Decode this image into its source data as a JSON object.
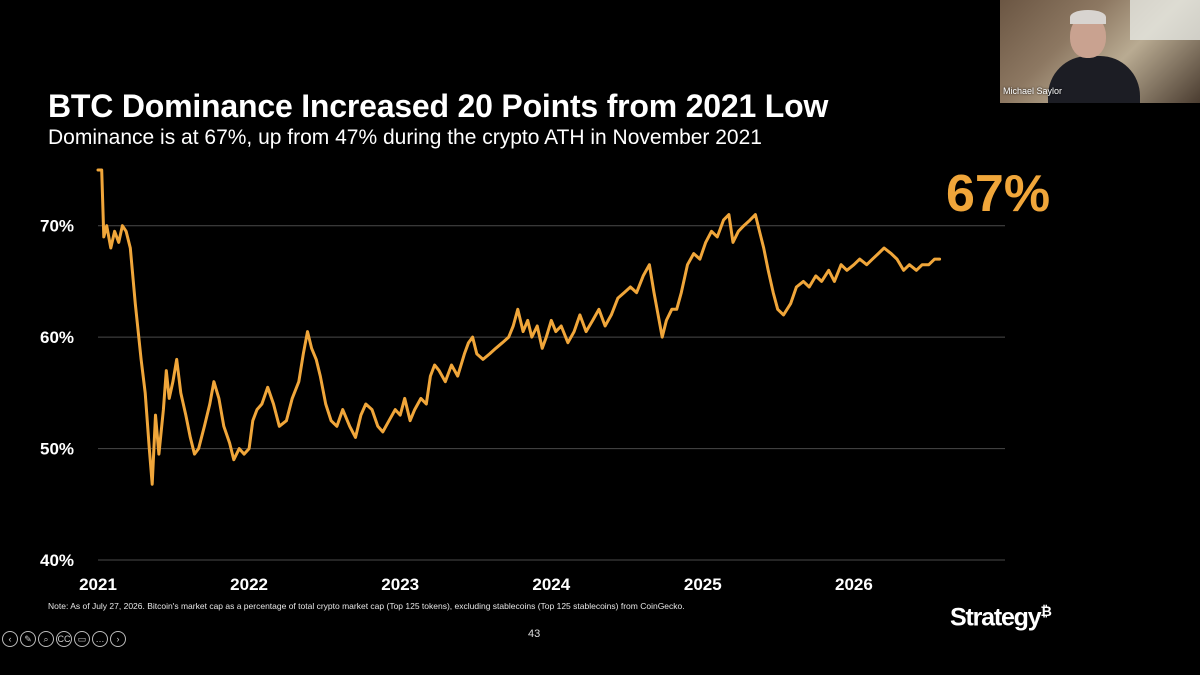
{
  "title": "BTC Dominance Increased 20 Points from 2021 Low",
  "subtitle": "Dominance is at 67%, up from 47% during the crypto ATH in November 2021",
  "highlight": "67%",
  "note": "Note: As of July 27, 2026. Bitcoin's market cap as a percentage of total crypto market cap (Top 125 tokens), excluding stablecoins (Top 125 stablecoins) from CoinGecko.",
  "page_number": "43",
  "logo": {
    "text": "Strategy",
    "mark": "₿"
  },
  "video": {
    "name": "Michael Saylor"
  },
  "controls": [
    {
      "name": "previous-icon",
      "glyph": "‹"
    },
    {
      "name": "pen-icon",
      "glyph": "✎"
    },
    {
      "name": "zoom-icon",
      "glyph": "⌕"
    },
    {
      "name": "captions-icon",
      "glyph": "CC"
    },
    {
      "name": "camera-icon",
      "glyph": "▭"
    },
    {
      "name": "more-icon",
      "glyph": "…"
    },
    {
      "name": "next-icon",
      "glyph": "›"
    }
  ],
  "colors": {
    "line": "#f0a63a",
    "grid": "#4a4a4a",
    "background": "#000000"
  },
  "chart_data": {
    "type": "line",
    "title": "BTC Dominance Increased 20 Points from 2021 Low",
    "xlabel": "",
    "ylabel": "",
    "x_ticks": [
      "2021",
      "2022",
      "2023",
      "2024",
      "2025",
      "2026"
    ],
    "y_ticks": [
      "40%",
      "50%",
      "60%",
      "70%"
    ],
    "ylim": [
      40,
      75
    ],
    "xlim": [
      "2021-01-01",
      "2026-07-27"
    ],
    "grid": true,
    "series": [
      {
        "values": [
          [
            "2021-01-01",
            75
          ],
          [
            "2021-01-10",
            75
          ],
          [
            "2021-01-15",
            69
          ],
          [
            "2021-01-22",
            70
          ],
          [
            "2021-02-01",
            68
          ],
          [
            "2021-02-10",
            69.5
          ],
          [
            "2021-02-20",
            68.5
          ],
          [
            "2021-03-01",
            70
          ],
          [
            "2021-03-10",
            69.5
          ],
          [
            "2021-03-20",
            68
          ],
          [
            "2021-04-01",
            63
          ],
          [
            "2021-04-15",
            58
          ],
          [
            "2021-04-25",
            55
          ],
          [
            "2021-05-05",
            50
          ],
          [
            "2021-05-12",
            46.8
          ],
          [
            "2021-05-20",
            53
          ],
          [
            "2021-05-28",
            49.5
          ],
          [
            "2021-06-08",
            53.5
          ],
          [
            "2021-06-15",
            57
          ],
          [
            "2021-06-22",
            54.5
          ],
          [
            "2021-07-01",
            56
          ],
          [
            "2021-07-10",
            58
          ],
          [
            "2021-07-20",
            55
          ],
          [
            "2021-08-01",
            53
          ],
          [
            "2021-08-12",
            51
          ],
          [
            "2021-08-22",
            49.5
          ],
          [
            "2021-09-01",
            50
          ],
          [
            "2021-09-15",
            52
          ],
          [
            "2021-09-28",
            54
          ],
          [
            "2021-10-08",
            56
          ],
          [
            "2021-10-20",
            54.5
          ],
          [
            "2021-11-01",
            52
          ],
          [
            "2021-11-15",
            50.5
          ],
          [
            "2021-11-25",
            49
          ],
          [
            "2021-12-08",
            50
          ],
          [
            "2021-12-20",
            49.5
          ],
          [
            "2022-01-01",
            50
          ],
          [
            "2022-01-10",
            52.5
          ],
          [
            "2022-01-20",
            53.5
          ],
          [
            "2022-02-01",
            54
          ],
          [
            "2022-02-15",
            55.5
          ],
          [
            "2022-03-01",
            54
          ],
          [
            "2022-03-15",
            52
          ],
          [
            "2022-04-01",
            52.5
          ],
          [
            "2022-04-15",
            54.5
          ],
          [
            "2022-05-01",
            56
          ],
          [
            "2022-05-12",
            58.5
          ],
          [
            "2022-05-22",
            60.5
          ],
          [
            "2022-06-01",
            59
          ],
          [
            "2022-06-12",
            58
          ],
          [
            "2022-06-22",
            56.5
          ],
          [
            "2022-07-05",
            54
          ],
          [
            "2022-07-18",
            52.5
          ],
          [
            "2022-08-01",
            52
          ],
          [
            "2022-08-15",
            53.5
          ],
          [
            "2022-09-01",
            52
          ],
          [
            "2022-09-15",
            51
          ],
          [
            "2022-09-28",
            53
          ],
          [
            "2022-10-10",
            54
          ],
          [
            "2022-10-25",
            53.5
          ],
          [
            "2022-11-08",
            52
          ],
          [
            "2022-11-20",
            51.5
          ],
          [
            "2022-12-05",
            52.5
          ],
          [
            "2022-12-20",
            53.5
          ],
          [
            "2023-01-01",
            53
          ],
          [
            "2023-01-12",
            54.5
          ],
          [
            "2023-01-25",
            52.5
          ],
          [
            "2023-02-05",
            53.5
          ],
          [
            "2023-02-20",
            54.5
          ],
          [
            "2023-03-05",
            54
          ],
          [
            "2023-03-15",
            56.5
          ],
          [
            "2023-03-25",
            57.5
          ],
          [
            "2023-04-05",
            57
          ],
          [
            "2023-04-20",
            56
          ],
          [
            "2023-05-05",
            57.5
          ],
          [
            "2023-05-20",
            56.5
          ],
          [
            "2023-06-05",
            58.5
          ],
          [
            "2023-06-15",
            59.5
          ],
          [
            "2023-06-25",
            60
          ],
          [
            "2023-07-05",
            58.5
          ],
          [
            "2023-07-20",
            58
          ],
          [
            "2023-08-05",
            58.5
          ],
          [
            "2023-08-20",
            59
          ],
          [
            "2023-09-05",
            59.5
          ],
          [
            "2023-09-20",
            60
          ],
          [
            "2023-10-01",
            61
          ],
          [
            "2023-10-12",
            62.5
          ],
          [
            "2023-10-25",
            60.5
          ],
          [
            "2023-11-05",
            61.5
          ],
          [
            "2023-11-15",
            60
          ],
          [
            "2023-11-28",
            61
          ],
          [
            "2023-12-10",
            59
          ],
          [
            "2023-12-20",
            60
          ],
          [
            "2024-01-01",
            61.5
          ],
          [
            "2024-01-12",
            60.5
          ],
          [
            "2024-01-25",
            61
          ],
          [
            "2024-02-10",
            59.5
          ],
          [
            "2024-02-25",
            60.5
          ],
          [
            "2024-03-10",
            62
          ],
          [
            "2024-03-25",
            60.5
          ],
          [
            "2024-04-10",
            61.5
          ],
          [
            "2024-04-25",
            62.5
          ],
          [
            "2024-05-10",
            61
          ],
          [
            "2024-05-25",
            62
          ],
          [
            "2024-06-10",
            63.5
          ],
          [
            "2024-06-25",
            64
          ],
          [
            "2024-07-10",
            64.5
          ],
          [
            "2024-07-25",
            64
          ],
          [
            "2024-08-10",
            65.5
          ],
          [
            "2024-08-25",
            66.5
          ],
          [
            "2024-09-05",
            64
          ],
          [
            "2024-09-15",
            62
          ],
          [
            "2024-09-25",
            60
          ],
          [
            "2024-10-05",
            61.5
          ],
          [
            "2024-10-18",
            62.5
          ],
          [
            "2024-10-30",
            62.5
          ],
          [
            "2024-11-10",
            64
          ],
          [
            "2024-11-25",
            66.5
          ],
          [
            "2024-12-10",
            67.5
          ],
          [
            "2024-12-25",
            67
          ],
          [
            "2025-01-08",
            68.5
          ],
          [
            "2025-01-22",
            69.5
          ],
          [
            "2025-02-05",
            69
          ],
          [
            "2025-02-20",
            70.5
          ],
          [
            "2025-03-05",
            71
          ],
          [
            "2025-03-15",
            68.5
          ],
          [
            "2025-03-28",
            69.5
          ],
          [
            "2025-04-10",
            70
          ],
          [
            "2025-04-25",
            70.5
          ],
          [
            "2025-05-08",
            71
          ],
          [
            "2025-05-18",
            69.5
          ],
          [
            "2025-05-28",
            68
          ],
          [
            "2025-06-08",
            66
          ],
          [
            "2025-06-20",
            64
          ],
          [
            "2025-07-01",
            62.5
          ],
          [
            "2025-07-15",
            62
          ],
          [
            "2025-08-01",
            63
          ],
          [
            "2025-08-15",
            64.5
          ],
          [
            "2025-09-01",
            65
          ],
          [
            "2025-09-15",
            64.5
          ],
          [
            "2025-10-01",
            65.5
          ],
          [
            "2025-10-15",
            65
          ],
          [
            "2025-11-01",
            66
          ],
          [
            "2025-11-15",
            65
          ],
          [
            "2025-12-01",
            66.5
          ],
          [
            "2025-12-15",
            66
          ],
          [
            "2026-01-01",
            66.5
          ],
          [
            "2026-01-15",
            67
          ],
          [
            "2026-02-01",
            66.5
          ],
          [
            "2026-02-15",
            67
          ],
          [
            "2026-03-01",
            67.5
          ],
          [
            "2026-03-15",
            68
          ],
          [
            "2026-04-01",
            67.5
          ],
          [
            "2026-04-15",
            67
          ],
          [
            "2026-05-01",
            66
          ],
          [
            "2026-05-15",
            66.5
          ],
          [
            "2026-06-01",
            66
          ],
          [
            "2026-06-15",
            66.5
          ],
          [
            "2026-07-01",
            66.5
          ],
          [
            "2026-07-15",
            67
          ],
          [
            "2026-07-27",
            67
          ]
        ]
      }
    ]
  }
}
